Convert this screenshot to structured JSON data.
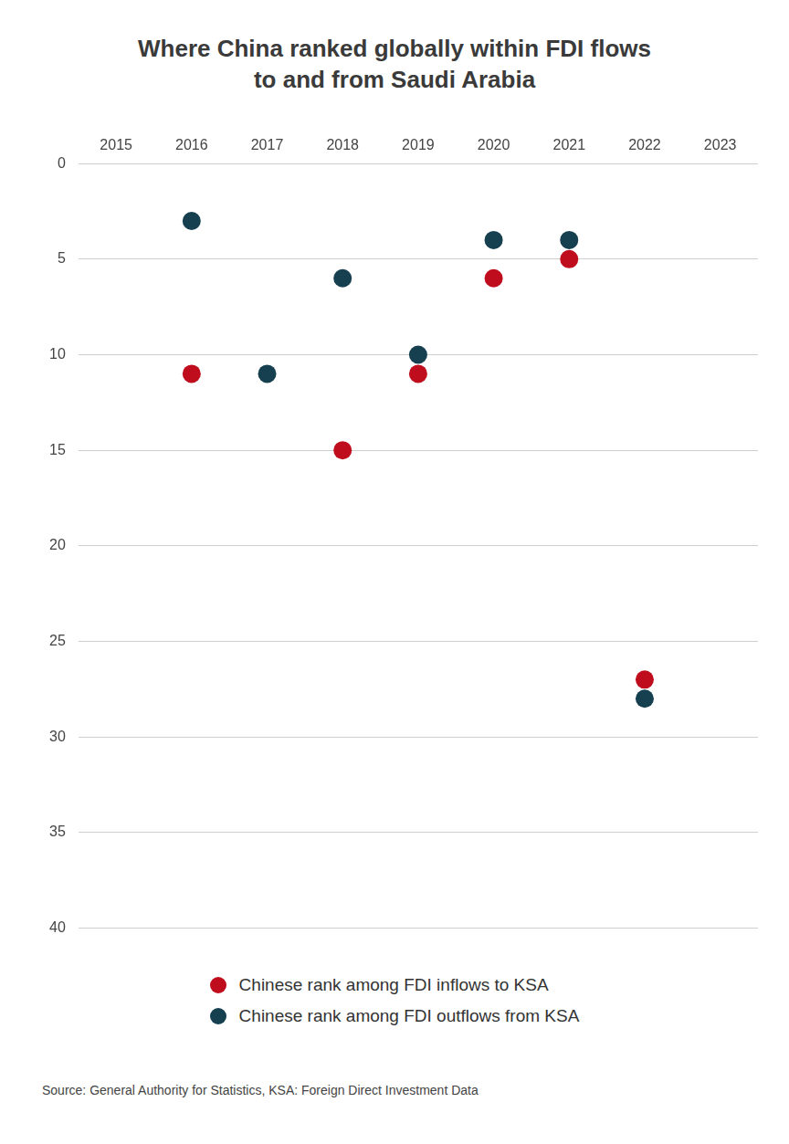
{
  "chart_data": {
    "type": "scatter",
    "title": "Where China ranked globally within FDI flows to and from Saudi Arabia",
    "categories": [
      "2015",
      "2016",
      "2017",
      "2018",
      "2019",
      "2020",
      "2021",
      "2022",
      "2023"
    ],
    "series": [
      {
        "name": "Chinese rank among FDI inflows to KSA",
        "color": "#c00d1e",
        "values": [
          null,
          11,
          null,
          15,
          11,
          6,
          5,
          27,
          null
        ]
      },
      {
        "name": "Chinese rank among FDI outflows from KSA",
        "color": "#163f50",
        "values": [
          null,
          3,
          11,
          6,
          10,
          4,
          4,
          28,
          null
        ]
      }
    ],
    "ylim": [
      40,
      0
    ],
    "yticks": [
      0,
      5,
      10,
      15,
      20,
      25,
      30,
      35,
      40
    ],
    "grid": true,
    "legend": "bottom",
    "marker": "circle",
    "source": "Source: General Authority for Statistics, KSA: Foreign Direct Investment Data"
  }
}
